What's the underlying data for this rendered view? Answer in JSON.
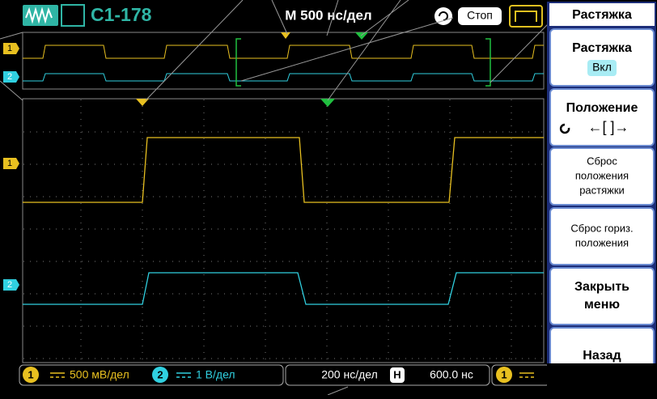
{
  "header": {
    "model": "C1-178",
    "timebase": "M 500 нс/дел",
    "run_state": "Стоп"
  },
  "channel_markers": {
    "overview_1": "1",
    "overview_2": "2",
    "main_1": "1",
    "main_2": "2"
  },
  "menu": {
    "title": "Растяжка",
    "items": [
      {
        "label": [
          "Растяжка"
        ],
        "value": "Вкл"
      },
      {
        "label": [
          "Положение"
        ],
        "value": "←[ ]→"
      },
      {
        "label": [
          "Сброс",
          "положения",
          "растяжки"
        ]
      },
      {
        "label": [
          "Сброс гориз.",
          "положения"
        ]
      },
      {
        "label": [
          "Закрыть",
          "меню"
        ]
      },
      {
        "label": [
          "Назад"
        ]
      }
    ]
  },
  "status": {
    "ch1_id": "1",
    "ch1_scale": "500 мВ/дел",
    "ch2_id": "2",
    "ch2_scale": "1 В/дел",
    "time_scale": "200 нс/дел",
    "h_id": "H",
    "h_position": "600.0 нс",
    "trig_id": "1"
  }
}
